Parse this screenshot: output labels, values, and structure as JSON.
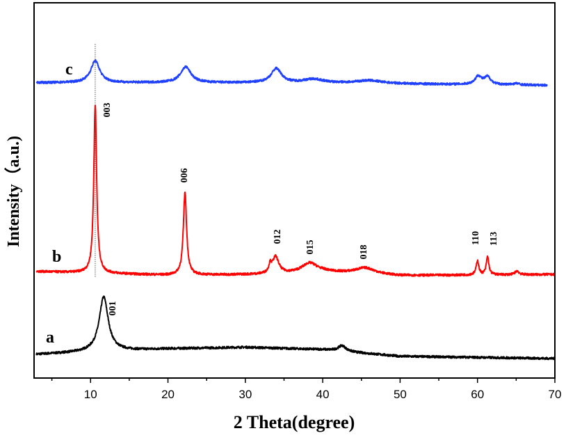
{
  "chart_data": {
    "type": "line",
    "title": "",
    "xlabel": "2 Theta(degree)",
    "ylabel": "Intensity（a.u.)",
    "xlim": [
      2.7,
      70
    ],
    "ylim": [
      0,
      100
    ],
    "xticks": [
      10,
      20,
      30,
      40,
      50,
      60,
      70
    ],
    "xtick_labels": [
      "10",
      "20",
      "30",
      "40",
      "50",
      "60",
      "70"
    ],
    "yticks_shown": false,
    "grid": false,
    "legend": "none",
    "reference_line": {
      "x": 10.6,
      "style": "dotted"
    },
    "series": [
      {
        "label": "a",
        "color": "#000000",
        "x_range": [
          3,
          70
        ],
        "baseline": [
          [
            3,
            6.3
          ],
          [
            10,
            7.0
          ],
          [
            20,
            7.8
          ],
          [
            30,
            8.2
          ],
          [
            40,
            7.6
          ],
          [
            50,
            5.8
          ],
          [
            70,
            5.2
          ]
        ],
        "peaks": [
          {
            "x": 11.7,
            "height": 14.5,
            "hwhm": 0.7,
            "hkl": "001"
          },
          {
            "x": 42.5,
            "height": 1.5,
            "hwhm": 0.6
          }
        ]
      },
      {
        "label": "b",
        "color": "#ff0000",
        "x_range": [
          3,
          70
        ],
        "baseline": [
          [
            3,
            28.4
          ],
          [
            20,
            27.4
          ],
          [
            33,
            27.6
          ],
          [
            40,
            28.3
          ],
          [
            50,
            27.3
          ],
          [
            70,
            27.6
          ]
        ],
        "peaks": [
          {
            "x": 10.6,
            "height": 45,
            "hwhm": 0.22,
            "hkl": "003"
          },
          {
            "x": 22.2,
            "height": 22,
            "hwhm": 0.25,
            "hkl": "006"
          },
          {
            "x": 33.2,
            "height": 2,
            "hwhm": 0.2
          },
          {
            "x": 33.9,
            "height": 4.5,
            "hwhm": 0.5,
            "hkl": "012"
          },
          {
            "x": 38.3,
            "height": 2.5,
            "hwhm": 1.2,
            "hkl": "015"
          },
          {
            "x": 45.5,
            "height": 1.6,
            "hwhm": 1.5,
            "hkl": "018"
          },
          {
            "x": 60.0,
            "height": 3.8,
            "hwhm": 0.2,
            "hkl": "110"
          },
          {
            "x": 61.3,
            "height": 4.8,
            "hwhm": 0.2,
            "hkl": "113"
          },
          {
            "x": 65.1,
            "height": 1.0,
            "hwhm": 0.3
          }
        ]
      },
      {
        "label": "c",
        "color": "#2040ff",
        "x_range": [
          3,
          69
        ],
        "baseline": [
          [
            3,
            78.7
          ],
          [
            20,
            78.7
          ],
          [
            40,
            78.6
          ],
          [
            69,
            78.0
          ]
        ],
        "peaks": [
          {
            "x": 10.6,
            "height": 5.8,
            "hwhm": 0.7
          },
          {
            "x": 22.3,
            "height": 4.2,
            "hwhm": 0.8
          },
          {
            "x": 34.0,
            "height": 3.8,
            "hwhm": 0.8
          },
          {
            "x": 38.8,
            "height": 1.0,
            "hwhm": 1.5
          },
          {
            "x": 46.0,
            "height": 0.8,
            "hwhm": 2.0
          },
          {
            "x": 60.1,
            "height": 2.2,
            "hwhm": 0.5
          },
          {
            "x": 61.3,
            "height": 2.0,
            "hwhm": 0.5
          },
          {
            "x": 65.0,
            "height": 0.4,
            "hwhm": 0.5
          }
        ]
      }
    ]
  }
}
